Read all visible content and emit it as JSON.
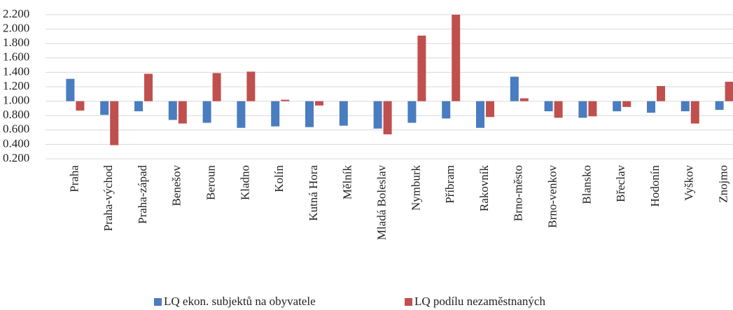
{
  "chart_data": {
    "type": "bar",
    "categories": [
      "Praha",
      "Praha-východ",
      "Praha-západ",
      "Benešov",
      "Beroun",
      "Kladno",
      "Kolín",
      "Kutná Hora",
      "Mělník",
      "Mladá Boleslav",
      "Nymburk",
      "Příbram",
      "Rakovník",
      "Brno-město",
      "Brno-venkov",
      "Blansko",
      "Břeclav",
      "Hodonín",
      "Vyškov",
      "Znojmo"
    ],
    "series": [
      {
        "name": "LQ ekon. subjektů na obyvatele",
        "color": "#4a7cc0",
        "values": [
          1.31,
          0.81,
          0.86,
          0.74,
          0.7,
          0.63,
          0.65,
          0.64,
          0.66,
          0.62,
          0.7,
          0.76,
          0.63,
          1.34,
          0.86,
          0.77,
          0.86,
          0.84,
          0.86,
          0.88
        ]
      },
      {
        "name": "LQ podílu nezaměstnaných",
        "color": "#c0504d",
        "values": [
          0.87,
          0.39,
          1.38,
          0.69,
          1.39,
          1.41,
          1.02,
          0.94,
          1.0,
          0.54,
          1.91,
          2.2,
          0.78,
          1.04,
          0.77,
          0.79,
          0.92,
          1.21,
          0.69,
          1.27
        ]
      }
    ],
    "baseline": 1,
    "ylim": [
      0.2,
      2.2
    ],
    "yticks": [
      {
        "value": 0.2,
        "label": "0.200"
      },
      {
        "value": 0.4,
        "label": "0.400"
      },
      {
        "value": 0.6,
        "label": "0.600"
      },
      {
        "value": 0.8,
        "label": "0.800"
      },
      {
        "value": 1.0,
        "label": "1.000"
      },
      {
        "value": 1.2,
        "label": "1.200"
      },
      {
        "value": 1.4,
        "label": "1.400"
      },
      {
        "value": 1.6,
        "label": "1.600"
      },
      {
        "value": 1.8,
        "label": "1.800"
      },
      {
        "value": 2.0,
        "label": "2.000"
      },
      {
        "value": 2.2,
        "label": "2.200"
      }
    ],
    "grid": true,
    "legend": "bottom"
  }
}
